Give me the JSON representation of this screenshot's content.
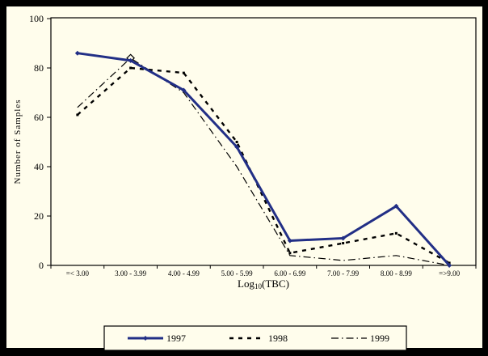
{
  "chart_data": {
    "type": "line",
    "title": "",
    "xlabel": "Log10(TBC)",
    "xlabel_parts": {
      "prefix": "Log",
      "sub": "10",
      "suffix": "(TBC)"
    },
    "ylabel": "Number of Samples",
    "ylim": [
      0,
      100
    ],
    "yticks": [
      0,
      20,
      40,
      60,
      80,
      100
    ],
    "categories": [
      "=< 3.00",
      "3.00 - 3.99",
      "4.00 - 4.99",
      "5.00 - 5.99",
      "6.00 - 6.99",
      "7.00 - 7.99",
      "8.00 - 8.99",
      "=>9.00"
    ],
    "series": [
      {
        "name": "1997",
        "values": [
          86,
          83,
          71,
          48,
          10,
          11,
          24,
          0
        ],
        "color": "#222f86",
        "style": "solid",
        "width": 3,
        "marker": "diamond-filled"
      },
      {
        "name": "1998",
        "values": [
          61,
          80,
          78,
          50,
          5,
          9,
          13,
          1
        ],
        "color": "#000000",
        "style": "dashed",
        "width": 2.4,
        "marker": "square-small"
      },
      {
        "name": "1999",
        "values": [
          64,
          84,
          70,
          40,
          4,
          2,
          4,
          0
        ],
        "color": "#000000",
        "style": "dashdot",
        "width": 1.2,
        "marker": "open-diamond-peak",
        "open_diamond_index": 1
      }
    ],
    "legend": {
      "position": "bottom-center-box",
      "entries": [
        "1997",
        "1998",
        "1999"
      ]
    },
    "grid": "off",
    "colors": {
      "background": "#fffdec",
      "frame": "#000000",
      "axis": "#000000",
      "accent": "#222f86"
    }
  }
}
